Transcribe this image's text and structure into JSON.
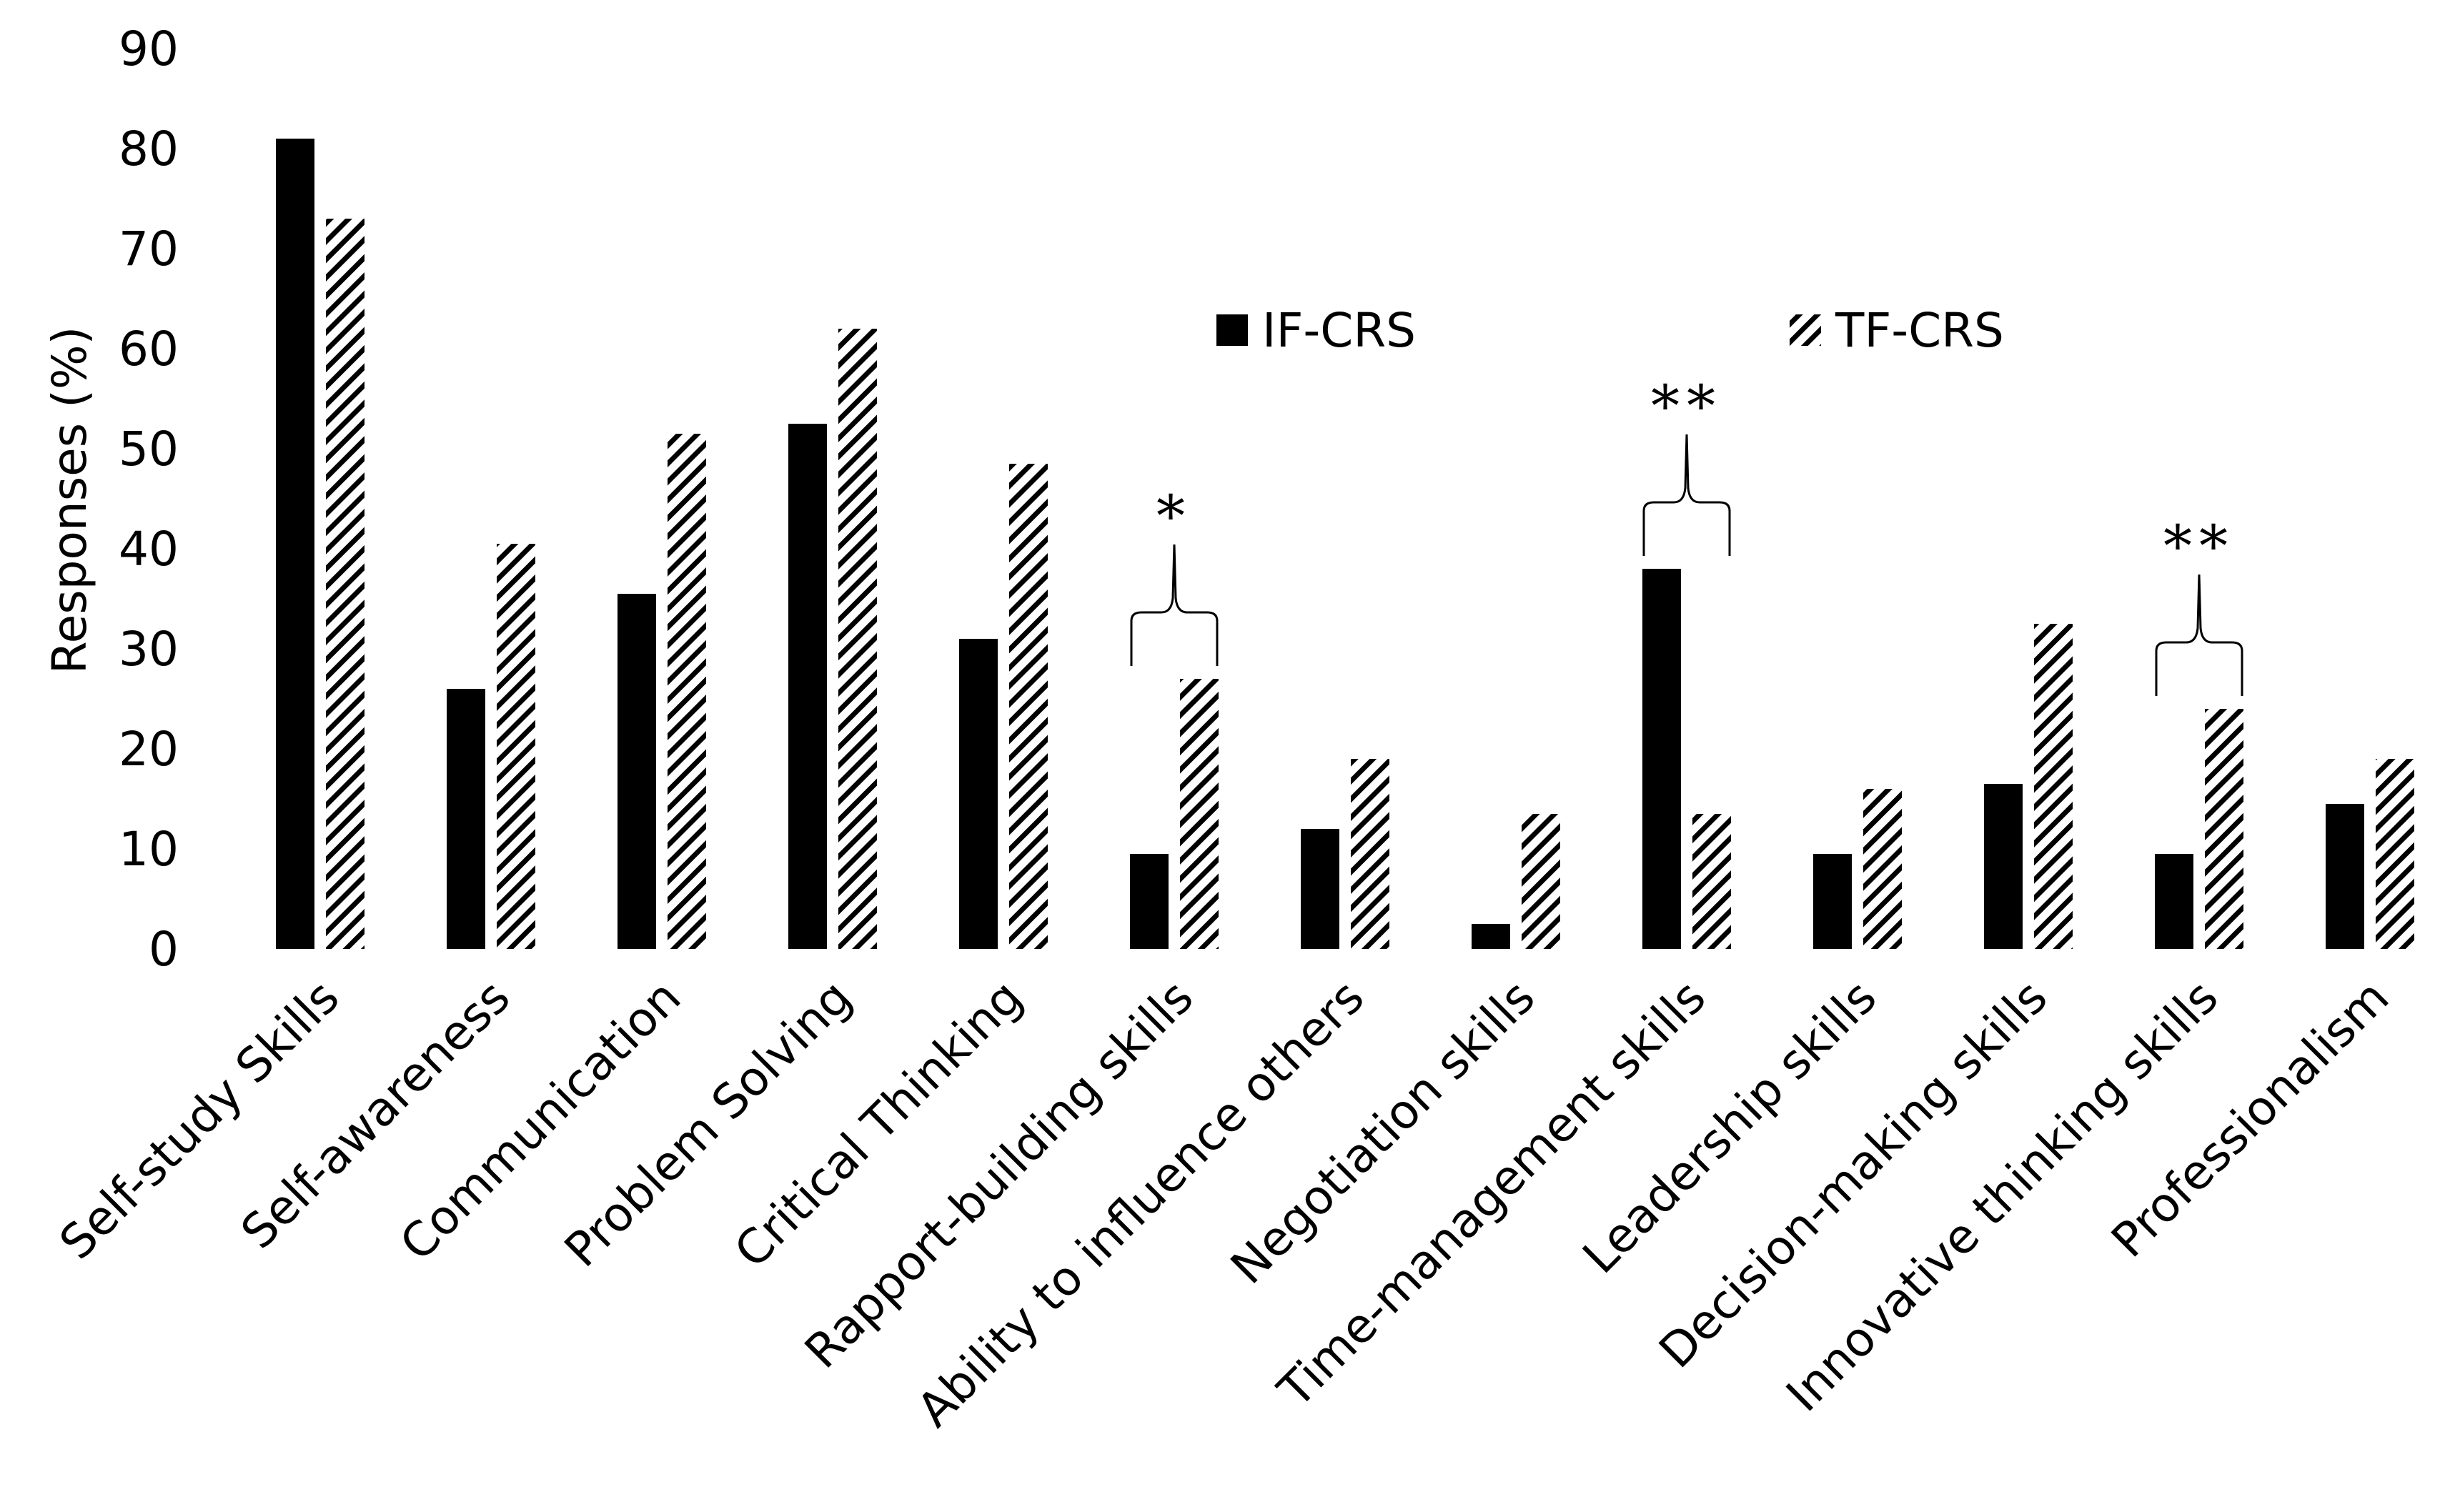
{
  "chart_data": {
    "type": "bar",
    "title": "",
    "xlabel": "",
    "ylabel": "Responses (%)",
    "ylim": [
      0,
      90
    ],
    "yticks": [
      0,
      10,
      20,
      30,
      40,
      50,
      60,
      70,
      80,
      90
    ],
    "grid": false,
    "legend_position": "top-center",
    "categories": [
      "Self-study Skills",
      "Self-awareness",
      "Communication",
      "Problem Solving",
      "Critical Thinking",
      "Rapport-building skills",
      "Ability to influence others",
      "Negotiation skills",
      "Time-management skills",
      "Leadership skills",
      "Decision-making skills",
      "Innovative thinking skills",
      "Professionalism"
    ],
    "series": [
      {
        "name": "IF-CRS",
        "fill": "solid",
        "color": "#000000",
        "values": [
          81,
          26,
          35.5,
          52.5,
          31,
          9.5,
          12,
          2.5,
          38,
          9.5,
          16.5,
          9.5,
          14.5
        ]
      },
      {
        "name": "TF-CRS",
        "fill": "hatched",
        "color": "#000000",
        "values": [
          73,
          40.5,
          51.5,
          62,
          48.5,
          27,
          19,
          13.5,
          13.5,
          16,
          32.5,
          24,
          19
        ]
      }
    ],
    "annotations": [
      {
        "category": "Rapport-building skills",
        "label": "*"
      },
      {
        "category": "Time-management skills",
        "label": "**"
      },
      {
        "category": "Innovative thinking skills",
        "label": "**"
      }
    ]
  }
}
